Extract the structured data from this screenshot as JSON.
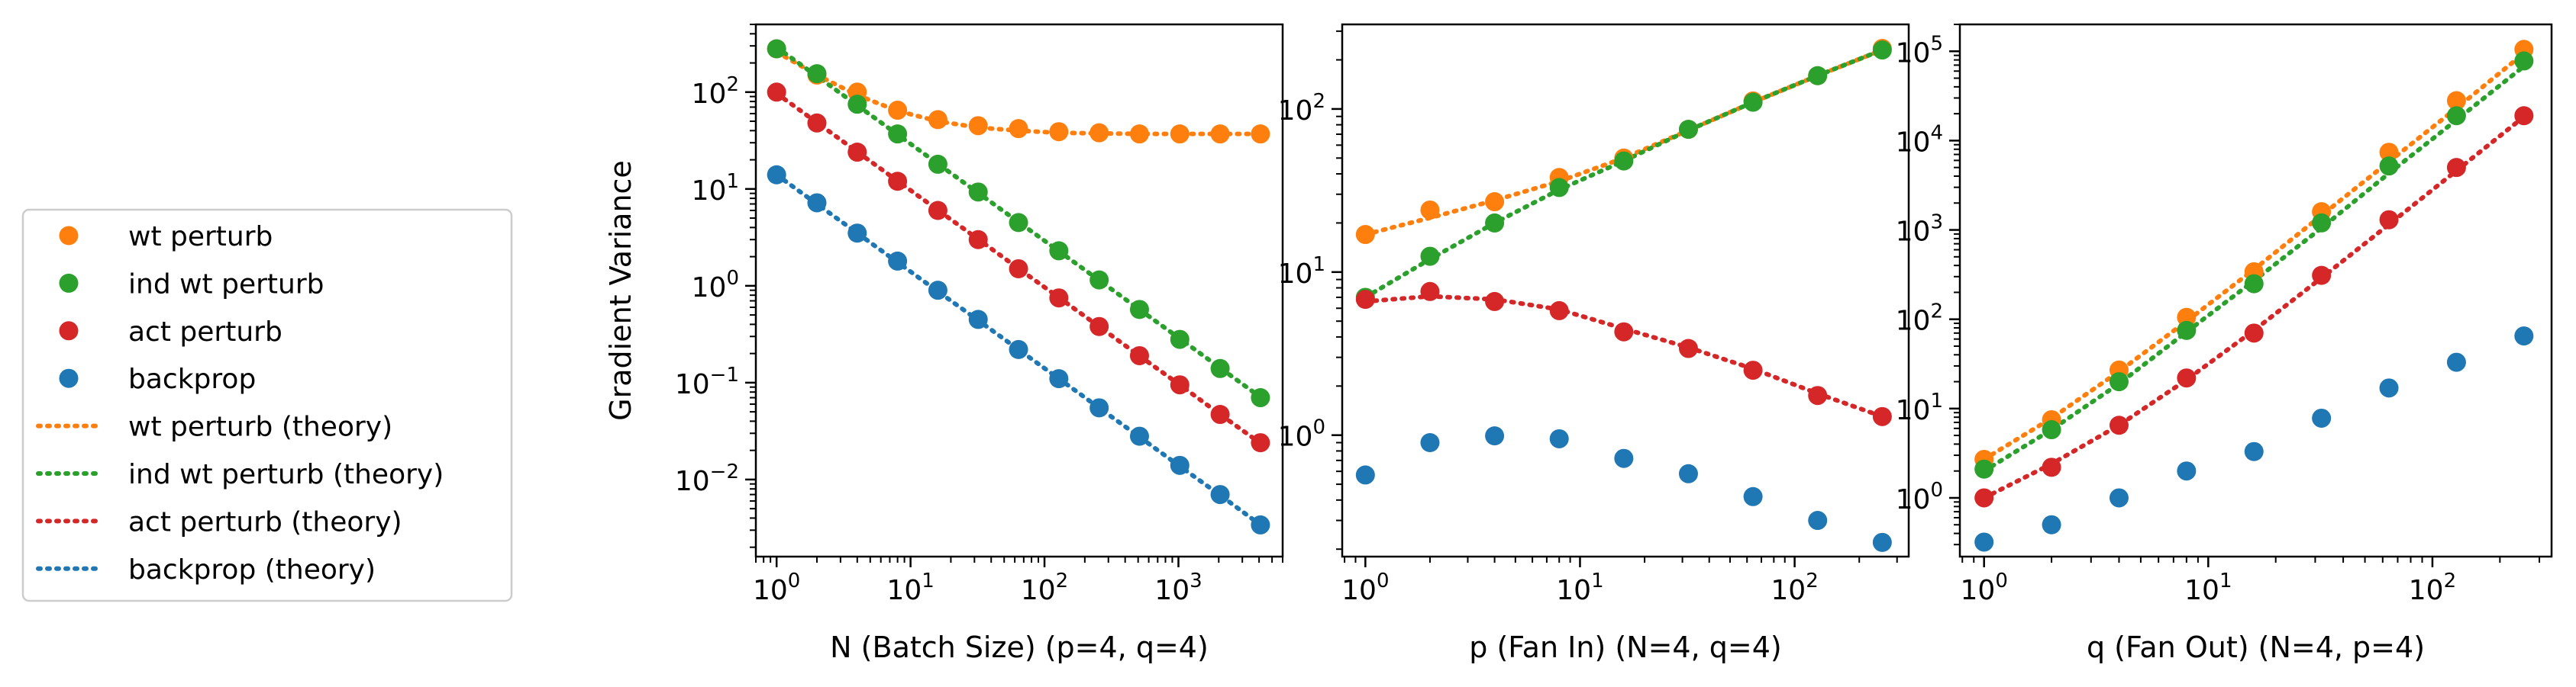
{
  "legend": {
    "items": [
      {
        "label": "wt perturb",
        "kind": "marker",
        "color": "#ff7f0e"
      },
      {
        "label": "ind wt perturb",
        "kind": "marker",
        "color": "#2ca02c"
      },
      {
        "label": "act perturb",
        "kind": "marker",
        "color": "#d62728"
      },
      {
        "label": "backprop",
        "kind": "marker",
        "color": "#1f77b4"
      },
      {
        "label": "wt perturb (theory)",
        "kind": "line",
        "color": "#ff7f0e"
      },
      {
        "label": "ind wt perturb (theory)",
        "kind": "line",
        "color": "#2ca02c"
      },
      {
        "label": "act perturb (theory)",
        "kind": "line",
        "color": "#d62728"
      },
      {
        "label": "backprop (theory)",
        "kind": "line",
        "color": "#1f77b4"
      }
    ]
  },
  "chart_data": [
    {
      "type": "scatter",
      "xlabel": "N (Batch Size) (p=4, q=4)",
      "ylabel": "Gradient Variance",
      "xscale": "log",
      "yscale": "log",
      "xlim": [
        0.7,
        6000
      ],
      "ylim": [
        0.0016,
        500
      ],
      "xticks": [
        1,
        10,
        100,
        1000
      ],
      "xtick_labels": [
        "10^0",
        "10^1",
        "10^2",
        "10^3"
      ],
      "yticks": [
        0.01,
        0.1,
        1,
        10,
        100
      ],
      "ytick_labels": [
        "10^-2",
        "10^-1",
        "10^0",
        "10^1",
        "10^2"
      ],
      "x": [
        1,
        2,
        4,
        8,
        16,
        32,
        64,
        128,
        256,
        512,
        1024,
        2048,
        4096
      ],
      "series": [
        {
          "name": "wt perturb",
          "color": "#ff7f0e",
          "values": [
            280,
            150,
            100,
            65,
            52,
            45,
            42,
            39,
            38,
            37,
            37,
            37,
            37
          ]
        },
        {
          "name": "ind wt perturb",
          "color": "#2ca02c",
          "values": [
            280,
            155,
            75,
            37,
            18,
            9.3,
            4.5,
            2.3,
            1.15,
            0.57,
            0.28,
            0.14,
            0.07
          ]
        },
        {
          "name": "act perturb",
          "color": "#d62728",
          "values": [
            100,
            48,
            24,
            12,
            6,
            3,
            1.5,
            0.75,
            0.38,
            0.19,
            0.095,
            0.047,
            0.024
          ]
        },
        {
          "name": "backprop",
          "color": "#1f77b4",
          "values": [
            14,
            7.2,
            3.5,
            1.8,
            0.9,
            0.45,
            0.22,
            0.11,
            0.055,
            0.028,
            0.014,
            0.007,
            0.0034
          ]
        }
      ],
      "theory": [
        {
          "name": "wt perturb (theory)",
          "color": "#ff7f0e",
          "values": [
            260,
            150,
            93,
            64,
            50,
            43,
            40,
            38,
            37.5,
            37,
            37,
            37,
            37
          ]
        },
        {
          "name": "ind wt perturb (theory)",
          "color": "#2ca02c",
          "values": [
            290,
            146,
            73,
            36.5,
            18.2,
            9.1,
            4.56,
            2.28,
            1.14,
            0.57,
            0.285,
            0.142,
            0.071
          ]
        },
        {
          "name": "act perturb (theory)",
          "color": "#d62728",
          "values": [
            97,
            48.5,
            24.2,
            12.1,
            6.05,
            3.03,
            1.51,
            0.757,
            0.379,
            0.189,
            0.095,
            0.047,
            0.0237
          ]
        },
        {
          "name": "backprop (theory)",
          "color": "#1f77b4",
          "values": [
            14,
            7,
            3.5,
            1.75,
            0.875,
            0.44,
            0.22,
            0.11,
            0.055,
            0.0275,
            0.0137,
            0.0069,
            0.0034
          ]
        }
      ]
    },
    {
      "type": "scatter",
      "xlabel": "p (Fan In) (N=4, q=4)",
      "ylabel": "",
      "xscale": "log",
      "yscale": "log",
      "xlim": [
        0.78,
        340
      ],
      "ylim": [
        0.18,
        330
      ],
      "xticks": [
        1,
        10,
        100
      ],
      "xtick_labels": [
        "10^0",
        "10^1",
        "10^2"
      ],
      "yticks": [
        1,
        10,
        100
      ],
      "ytick_labels": [
        "10^0",
        "10^1",
        "10^2"
      ],
      "x": [
        1,
        2,
        4,
        8,
        16,
        32,
        64,
        128,
        256
      ],
      "series": [
        {
          "name": "wt perturb",
          "color": "#ff7f0e",
          "values": [
            17,
            24,
            27,
            38,
            50,
            75,
            112,
            160,
            235
          ]
        },
        {
          "name": "ind wt perturb",
          "color": "#2ca02c",
          "values": [
            7,
            12.5,
            20,
            33,
            48,
            75,
            110,
            160,
            230
          ]
        },
        {
          "name": "act perturb",
          "color": "#d62728",
          "values": [
            6.8,
            7.6,
            6.6,
            5.8,
            4.3,
            3.4,
            2.5,
            1.75,
            1.3
          ]
        },
        {
          "name": "backprop",
          "color": "#1f77b4",
          "values": [
            0.57,
            0.9,
            0.99,
            0.95,
            0.72,
            0.58,
            0.42,
            0.3,
            0.22
          ]
        }
      ],
      "theory": [
        {
          "name": "wt perturb (theory)",
          "color": "#ff7f0e",
          "values": [
            17,
            21.5,
            27.5,
            36,
            50,
            74,
            110,
            160,
            230
          ]
        },
        {
          "name": "ind wt perturb (theory)",
          "color": "#2ca02c",
          "values": [
            7,
            12,
            20,
            32,
            48,
            74,
            110,
            160,
            230
          ]
        },
        {
          "name": "act perturb (theory)",
          "color": "#d62728",
          "values": [
            6.6,
            7.1,
            6.8,
            5.9,
            4.5,
            3.45,
            2.55,
            1.8,
            1.3
          ]
        }
      ]
    },
    {
      "type": "scatter",
      "xlabel": "q (Fan Out) (N=4, p=4)",
      "ylabel": "",
      "xscale": "log",
      "yscale": "log",
      "xlim": [
        0.78,
        340
      ],
      "ylim": [
        0.22,
        200000
      ],
      "xticks": [
        1,
        10,
        100
      ],
      "xtick_labels": [
        "10^0",
        "10^1",
        "10^2"
      ],
      "yticks": [
        1,
        10,
        100,
        1000,
        10000,
        100000
      ],
      "ytick_labels": [
        "10^0",
        "10^1",
        "10^2",
        "10^3",
        "10^4",
        "10^5"
      ],
      "x": [
        1,
        2,
        4,
        8,
        16,
        32,
        64,
        128,
        256
      ],
      "series": [
        {
          "name": "wt perturb",
          "color": "#ff7f0e",
          "values": [
            2.7,
            7.5,
            27,
            105,
            340,
            1600,
            7400,
            28000,
            105000
          ]
        },
        {
          "name": "ind wt perturb",
          "color": "#2ca02c",
          "values": [
            2.1,
            5.8,
            20,
            75,
            250,
            1200,
            5200,
            19000,
            78000
          ]
        },
        {
          "name": "act perturb",
          "color": "#d62728",
          "values": [
            1.0,
            2.2,
            6.5,
            22,
            70,
            310,
            1300,
            5000,
            19000
          ]
        },
        {
          "name": "backprop",
          "color": "#1f77b4",
          "values": [
            0.32,
            0.5,
            1.0,
            2.0,
            3.3,
            7.8,
            17,
            33,
            65
          ]
        }
      ],
      "theory": [
        {
          "name": "wt perturb (theory)",
          "color": "#ff7f0e",
          "values": [
            2.7,
            7.8,
            26,
            95,
            360,
            1450,
            5800,
            23000,
            95000
          ]
        },
        {
          "name": "ind wt perturb (theory)",
          "color": "#2ca02c",
          "values": [
            2.0,
            5.8,
            19,
            72,
            270,
            1050,
            4300,
            17000,
            68000
          ]
        },
        {
          "name": "act perturb (theory)",
          "color": "#d62728",
          "values": [
            1.0,
            2.4,
            6.5,
            21,
            75,
            290,
            1150,
            4600,
            18500
          ]
        }
      ]
    }
  ]
}
